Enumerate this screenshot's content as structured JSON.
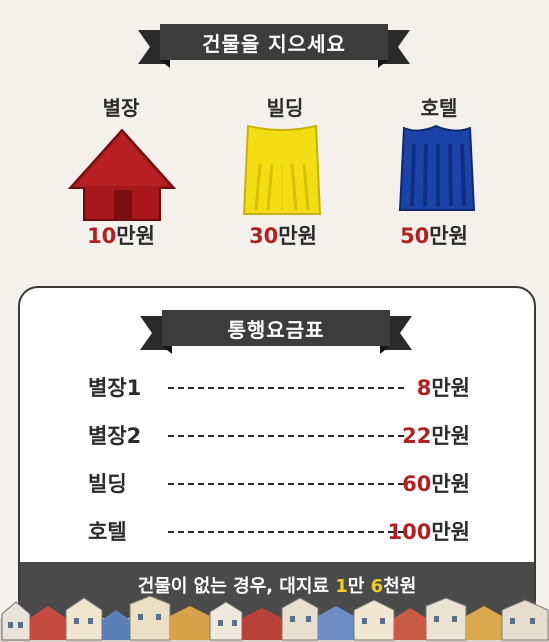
{
  "header": {
    "title": "건물을 지으세요"
  },
  "buildings": [
    {
      "label": "별장",
      "price_num": "10",
      "price_unit": "만원",
      "color": "#a8181b"
    },
    {
      "label": "빌딩",
      "price_num": "30",
      "price_unit": "만원",
      "color": "#f3dd13"
    },
    {
      "label": "호텔",
      "price_num": "50",
      "price_unit": "만원",
      "color": "#1c43a8"
    }
  ],
  "tolls": {
    "title": "통행요금표",
    "rows": [
      {
        "name": "별장1",
        "num": "8",
        "unit": "만원"
      },
      {
        "name": "별장2",
        "num": "22",
        "unit": "만원"
      },
      {
        "name": "빌딩",
        "num": "60",
        "unit": "만원"
      },
      {
        "name": "호텔",
        "num": "100",
        "unit": "만원"
      }
    ],
    "footer": {
      "prefix": "건물이 없는 경우, 대지료 ",
      "num1": "1",
      "mid": "만 ",
      "num2": "6",
      "suffix": "천원"
    }
  },
  "colors": {
    "ribbon": "#3c3c3c",
    "price_accent": "#b3201f",
    "highlight": "#f2cc2a"
  }
}
